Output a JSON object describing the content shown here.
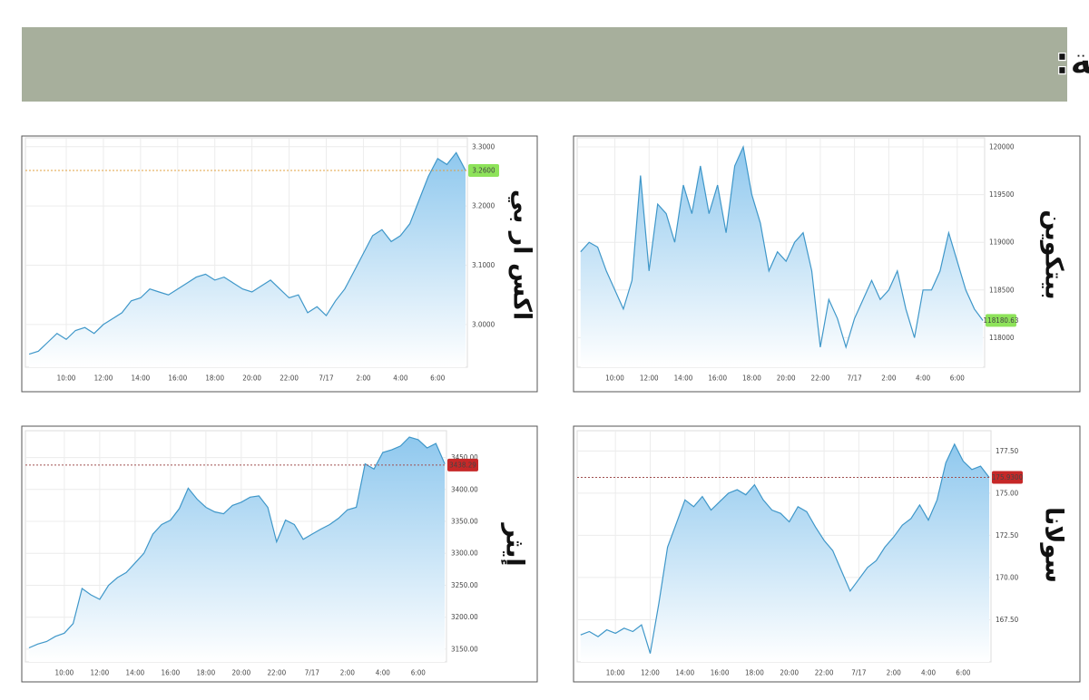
{
  "header": {
    "title": "تحركات العملات الرقمية:"
  },
  "chart_data": [
    {
      "type": "area",
      "title": "بيتكوين",
      "color": "#3f97c9",
      "x": [
        8,
        8.5,
        9,
        9.5,
        10,
        10.5,
        11,
        11.5,
        12,
        12.5,
        13,
        13.5,
        14,
        14.5,
        15,
        15.5,
        16,
        16.5,
        17,
        17.5,
        18,
        18.5,
        19,
        19.5,
        20,
        20.5,
        21,
        21.5,
        22,
        22.5,
        23,
        23.5,
        24,
        24.5,
        25,
        25.5,
        26,
        26.5,
        27,
        27.5,
        28,
        28.5,
        29,
        29.5,
        30,
        30.5,
        31,
        31.5
      ],
      "values": [
        118900,
        119000,
        118950,
        118700,
        118500,
        118300,
        118600,
        119700,
        118700,
        119400,
        119300,
        119000,
        119600,
        119300,
        119800,
        119300,
        119600,
        119100,
        119800,
        120000,
        119500,
        119200,
        118700,
        118900,
        118800,
        119000,
        119100,
        118700,
        117900,
        118400,
        118200,
        117900,
        118200,
        118400,
        118600,
        118400,
        118500,
        118700,
        118300,
        118000,
        118500,
        118500,
        118700,
        119100,
        118800,
        118500,
        118300,
        118180
      ],
      "xlim": [
        7.8,
        31.6
      ],
      "ylim": [
        117690,
        120095
      ],
      "xticks": [
        {
          "value": 10,
          "label": "10:00"
        },
        {
          "value": 12,
          "label": "12:00"
        },
        {
          "value": 14,
          "label": "14:00"
        },
        {
          "value": 16,
          "label": "16:00"
        },
        {
          "value": 18,
          "label": "18:00"
        },
        {
          "value": 20,
          "label": "20:00"
        },
        {
          "value": 22,
          "label": "22:00"
        },
        {
          "value": 24,
          "label": "7/17"
        },
        {
          "value": 26,
          "label": "2:00"
        },
        {
          "value": 28,
          "label": "4:00"
        },
        {
          "value": 30,
          "label": "6:00"
        }
      ],
      "yticks": [
        118000,
        118500,
        119000,
        119500,
        120000
      ],
      "grid": true,
      "current": 118180.63,
      "current_color": "#8ee35a",
      "current_line": false
    },
    {
      "type": "area",
      "title": "اكس ار بي",
      "color": "#3f97c9",
      "x": [
        8,
        8.5,
        9,
        9.5,
        10,
        10.5,
        11,
        11.5,
        12,
        12.5,
        13,
        13.5,
        14,
        14.5,
        15,
        15.5,
        16,
        16.5,
        17,
        17.5,
        18,
        18.5,
        19,
        19.5,
        20,
        20.5,
        21,
        21.5,
        22,
        22.5,
        23,
        23.5,
        24,
        24.5,
        25,
        25.5,
        26,
        26.5,
        27,
        27.5,
        28,
        28.5,
        29,
        29.5,
        30,
        30.5,
        31,
        31.5
      ],
      "values": [
        2.95,
        2.955,
        2.97,
        2.985,
        2.975,
        2.99,
        2.995,
        2.985,
        3.0,
        3.01,
        3.02,
        3.04,
        3.045,
        3.06,
        3.055,
        3.05,
        3.06,
        3.07,
        3.08,
        3.085,
        3.075,
        3.08,
        3.07,
        3.06,
        3.055,
        3.065,
        3.075,
        3.06,
        3.045,
        3.05,
        3.02,
        3.03,
        3.015,
        3.04,
        3.06,
        3.09,
        3.12,
        3.15,
        3.16,
        3.14,
        3.15,
        3.17,
        3.21,
        3.25,
        3.28,
        3.27,
        3.29,
        3.26
      ],
      "xlim": [
        7.8,
        31.6
      ],
      "ylim": [
        2.928,
        3.315
      ],
      "xticks": [
        {
          "value": 10,
          "label": "10:00"
        },
        {
          "value": 12,
          "label": "12:00"
        },
        {
          "value": 14,
          "label": "14:00"
        },
        {
          "value": 16,
          "label": "16:00"
        },
        {
          "value": 18,
          "label": "18:00"
        },
        {
          "value": 20,
          "label": "20:00"
        },
        {
          "value": 22,
          "label": "22:00"
        },
        {
          "value": 24,
          "label": "7/17"
        },
        {
          "value": 26,
          "label": "2:00"
        },
        {
          "value": 28,
          "label": "4:00"
        },
        {
          "value": 30,
          "label": "6:00"
        }
      ],
      "yticks": [
        {
          "value": 3.0,
          "label": "3.0000"
        },
        {
          "value": 3.1,
          "label": "3.1000"
        },
        {
          "value": 3.2,
          "label": "3.2000"
        },
        {
          "value": 3.3,
          "label": "3.3000"
        }
      ],
      "grid": true,
      "current": 3.26,
      "current_label": "3.2600",
      "current_color": "#8ee35a",
      "current_line": true,
      "current_line_color": "#e0a040"
    },
    {
      "type": "area",
      "title": "إيثر",
      "color": "#3f97c9",
      "x": [
        8,
        8.5,
        9,
        9.5,
        10,
        10.5,
        11,
        11.5,
        12,
        12.5,
        13,
        13.5,
        14,
        14.5,
        15,
        15.5,
        16,
        16.5,
        17,
        17.5,
        18,
        18.5,
        19,
        19.5,
        20,
        20.5,
        21,
        21.5,
        22,
        22.5,
        23,
        23.5,
        24,
        24.5,
        25,
        25.5,
        26,
        26.5,
        27,
        27.5,
        28,
        28.5,
        29,
        29.5,
        30,
        30.5,
        31,
        31.5
      ],
      "values": [
        3152,
        3158,
        3162,
        3170,
        3175,
        3190,
        3245,
        3235,
        3228,
        3250,
        3262,
        3270,
        3285,
        3300,
        3330,
        3345,
        3352,
        3370,
        3402,
        3385,
        3372,
        3365,
        3362,
        3375,
        3380,
        3388,
        3390,
        3372,
        3318,
        3352,
        3345,
        3322,
        3330,
        3338,
        3345,
        3355,
        3368,
        3372,
        3440,
        3432,
        3458,
        3462,
        3468,
        3482,
        3478,
        3465,
        3472,
        3440
      ],
      "xlim": [
        7.8,
        31.6
      ],
      "ylim": [
        3130,
        3492
      ],
      "xticks": [
        {
          "value": 10,
          "label": "10:00"
        },
        {
          "value": 12,
          "label": "12:00"
        },
        {
          "value": 14,
          "label": "14:00"
        },
        {
          "value": 16,
          "label": "16:00"
        },
        {
          "value": 18,
          "label": "18:00"
        },
        {
          "value": 20,
          "label": "20:00"
        },
        {
          "value": 22,
          "label": "22:00"
        },
        {
          "value": 24,
          "label": "7/17"
        },
        {
          "value": 26,
          "label": "2:00"
        },
        {
          "value": 28,
          "label": "4:00"
        },
        {
          "value": 30,
          "label": "6:00"
        }
      ],
      "yticks": [
        {
          "value": 3150,
          "label": "3150.00"
        },
        {
          "value": 3200,
          "label": "3200.00"
        },
        {
          "value": 3250,
          "label": "3250.00"
        },
        {
          "value": 3300,
          "label": "3300.00"
        },
        {
          "value": 3350,
          "label": "3350.00"
        },
        {
          "value": 3400,
          "label": "3400.00"
        },
        {
          "value": 3450,
          "label": "3450.00"
        }
      ],
      "grid": true,
      "current": 3438.29,
      "current_color": "#c62828",
      "current_line": true,
      "current_line_color": "#a05050"
    },
    {
      "type": "area",
      "title": "سولانا",
      "color": "#3f97c9",
      "x": [
        8,
        8.5,
        9,
        9.5,
        10,
        10.5,
        11,
        11.5,
        12,
        12.5,
        13,
        13.5,
        14,
        14.5,
        15,
        15.5,
        16,
        16.5,
        17,
        17.5,
        18,
        18.5,
        19,
        19.5,
        20,
        20.5,
        21,
        21.5,
        22,
        22.5,
        23,
        23.5,
        24,
        24.5,
        25,
        25.5,
        26,
        26.5,
        27,
        27.5,
        28,
        28.5,
        29,
        29.5,
        30,
        30.5,
        31,
        31.5
      ],
      "values": [
        166.6,
        166.8,
        166.5,
        166.9,
        166.7,
        167.0,
        166.8,
        167.2,
        165.5,
        168.5,
        171.8,
        173.2,
        174.6,
        174.2,
        174.8,
        174.0,
        174.5,
        175.0,
        175.2,
        174.9,
        175.5,
        174.6,
        174.0,
        173.8,
        173.3,
        174.2,
        173.9,
        173.0,
        172.2,
        171.6,
        170.4,
        169.2,
        169.9,
        170.6,
        171.0,
        171.8,
        172.4,
        173.1,
        173.5,
        174.3,
        173.4,
        174.6,
        176.8,
        177.9,
        176.9,
        176.4,
        176.6,
        175.93
      ],
      "xlim": [
        7.8,
        31.6
      ],
      "ylim": [
        165,
        178.7
      ],
      "xticks": [
        {
          "value": 10,
          "label": "10:00"
        },
        {
          "value": 12,
          "label": "12:00"
        },
        {
          "value": 14,
          "label": "14:00"
        },
        {
          "value": 16,
          "label": "16:00"
        },
        {
          "value": 18,
          "label": "18:00"
        },
        {
          "value": 20,
          "label": "20:00"
        },
        {
          "value": 22,
          "label": "22:00"
        },
        {
          "value": 24,
          "label": "7/17"
        },
        {
          "value": 26,
          "label": "2:00"
        },
        {
          "value": 28,
          "label": "4:00"
        },
        {
          "value": 30,
          "label": "6:00"
        }
      ],
      "yticks": [
        {
          "value": 167.5,
          "label": "167.50"
        },
        {
          "value": 170,
          "label": "170.00"
        },
        {
          "value": 172.5,
          "label": "172.50"
        },
        {
          "value": 175,
          "label": "175.00"
        },
        {
          "value": 177.5,
          "label": "177.50"
        }
      ],
      "grid": true,
      "current": 175.93,
      "current_label": "175.9300",
      "current_color": "#c62828",
      "current_line": true,
      "current_line_color": "#a05050"
    }
  ]
}
